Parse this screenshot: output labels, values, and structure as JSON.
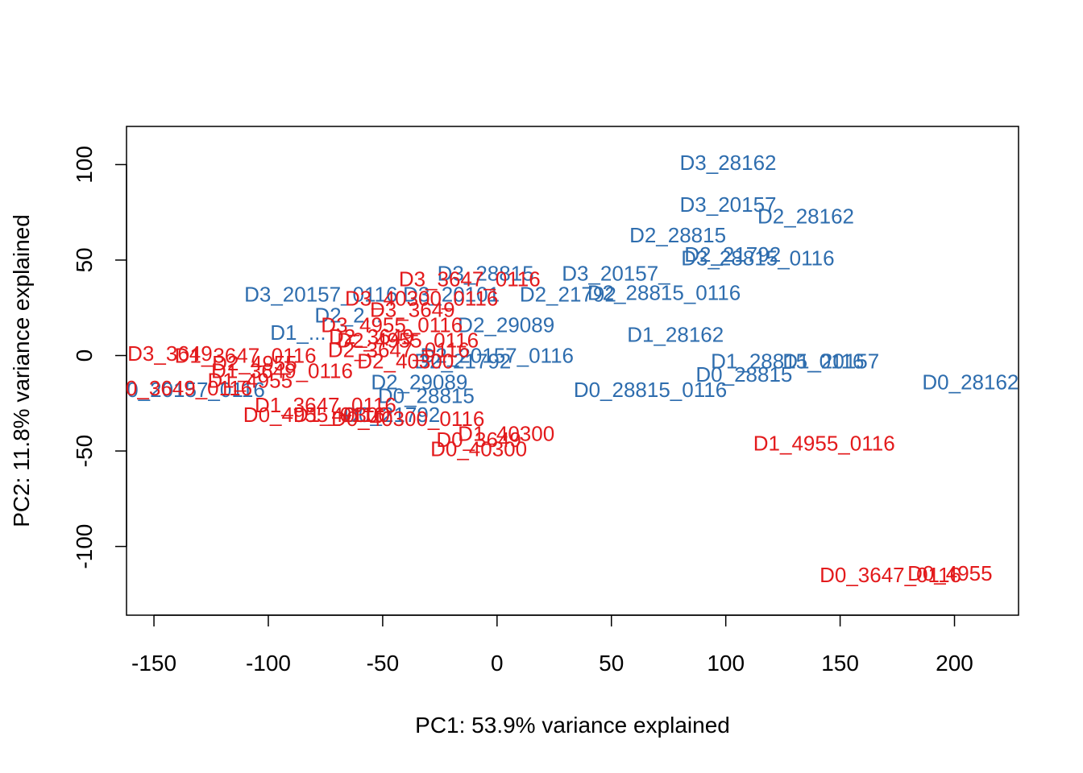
{
  "chart_data": {
    "type": "scatter",
    "title": "",
    "xlabel": "PC1: 53.9% variance explained",
    "ylabel": "PC2: 11.8% variance explained",
    "xlim": [
      -162,
      228
    ],
    "ylim": [
      -136,
      120
    ],
    "xticks": [
      -150,
      -100,
      -50,
      0,
      50,
      100,
      150,
      200
    ],
    "yticks": [
      -100,
      -50,
      0,
      50,
      100
    ],
    "grid": false,
    "legend": "none",
    "colors": {
      "blue": "#2E6DAE",
      "red": "#E31A1C"
    },
    "series": [
      {
        "color": "#2E6DAE",
        "points": [
          {
            "x": 101,
            "y": 101,
            "label": "D3_28162"
          },
          {
            "x": 101,
            "y": 79,
            "label": "D3_20157"
          },
          {
            "x": 135,
            "y": 73,
            "label": "D2_28162"
          },
          {
            "x": 79,
            "y": 63,
            "label": "D2_28815"
          },
          {
            "x": 103,
            "y": 53,
            "label": "D2_21792"
          },
          {
            "x": 114,
            "y": 51,
            "label": "D3_28815_0116"
          },
          {
            "x": -5,
            "y": 43,
            "label": "D3_28815"
          },
          {
            "x": 52,
            "y": 43,
            "label": "D3_20157_"
          },
          {
            "x": 31,
            "y": 32,
            "label": "D2_21792"
          },
          {
            "x": 73,
            "y": 33,
            "label": "D2_28815_0116"
          },
          {
            "x": -77,
            "y": 32,
            "label": "D3_20157_0116"
          },
          {
            "x": -20,
            "y": 32,
            "label": "D3_20101"
          },
          {
            "x": -65,
            "y": 21,
            "label": "D2_2..."
          },
          {
            "x": 4,
            "y": 16,
            "label": "D2_29089"
          },
          {
            "x": 78,
            "y": 11,
            "label": "D1_28162"
          },
          {
            "x": -87,
            "y": 12,
            "label": "D1_..."
          },
          {
            "x": 0,
            "y": 0,
            "label": "D2_20157_0116"
          },
          {
            "x": -15,
            "y": -3,
            "label": "D2_21792"
          },
          {
            "x": 127,
            "y": -3,
            "label": "D1_28815_0116"
          },
          {
            "x": 146,
            "y": -3,
            "label": "D1_20157"
          },
          {
            "x": 108,
            "y": -10,
            "label": "D0_28815"
          },
          {
            "x": 207,
            "y": -14,
            "label": "D0_28162"
          },
          {
            "x": 67,
            "y": -18,
            "label": "D0_28815_0116"
          },
          {
            "x": -34,
            "y": -14,
            "label": "D2_29089"
          },
          {
            "x": -31,
            "y": -21,
            "label": "D0_28815"
          },
          {
            "x": -46,
            "y": -31,
            "label": "D0_21792"
          },
          {
            "x": -135,
            "y": -18,
            "label": "D0_20157_0116"
          }
        ]
      },
      {
        "color": "#E31A1C",
        "points": [
          {
            "x": -12,
            "y": 40,
            "label": "D3_3647_0116"
          },
          {
            "x": -33,
            "y": 30,
            "label": "D3_40300_0116"
          },
          {
            "x": -37,
            "y": 24,
            "label": "D3_3649"
          },
          {
            "x": -46,
            "y": 16,
            "label": "D3_4955_0116"
          },
          {
            "x": -55,
            "y": 10,
            "label": "D2_3649"
          },
          {
            "x": -39,
            "y": 8,
            "label": "D2_4955_0116"
          },
          {
            "x": -43,
            "y": 3,
            "label": "D2_3647_0116"
          },
          {
            "x": -143,
            "y": 1,
            "label": "D3_3649"
          },
          {
            "x": -110,
            "y": 0,
            "label": "D1_3647_0116"
          },
          {
            "x": -106,
            "y": -4,
            "label": "D2_4955"
          },
          {
            "x": -94,
            "y": -8,
            "label": "D1_3649_0116"
          },
          {
            "x": -40,
            "y": -3,
            "label": "D2_40300"
          },
          {
            "x": -108,
            "y": -13,
            "label": "D1_4955"
          },
          {
            "x": -138,
            "y": -17,
            "label": "D0_3649_0116"
          },
          {
            "x": -75,
            "y": -26,
            "label": "D1_3647_0116"
          },
          {
            "x": -68,
            "y": -31,
            "label": "D1_40300"
          },
          {
            "x": -39,
            "y": -33,
            "label": "D0_40300_0116"
          },
          {
            "x": -80,
            "y": -31,
            "label": "D0_4955_0116"
          },
          {
            "x": 4,
            "y": -41,
            "label": "D1_40300"
          },
          {
            "x": -8,
            "y": -44,
            "label": "D0_3649"
          },
          {
            "x": -8,
            "y": -49,
            "label": "D0_40300"
          },
          {
            "x": 143,
            "y": -46,
            "label": "D1_4955_0116"
          },
          {
            "x": 172,
            "y": -115,
            "label": "D0_3647_0116"
          },
          {
            "x": 198,
            "y": -114,
            "label": "D0_4955"
          }
        ]
      }
    ]
  }
}
